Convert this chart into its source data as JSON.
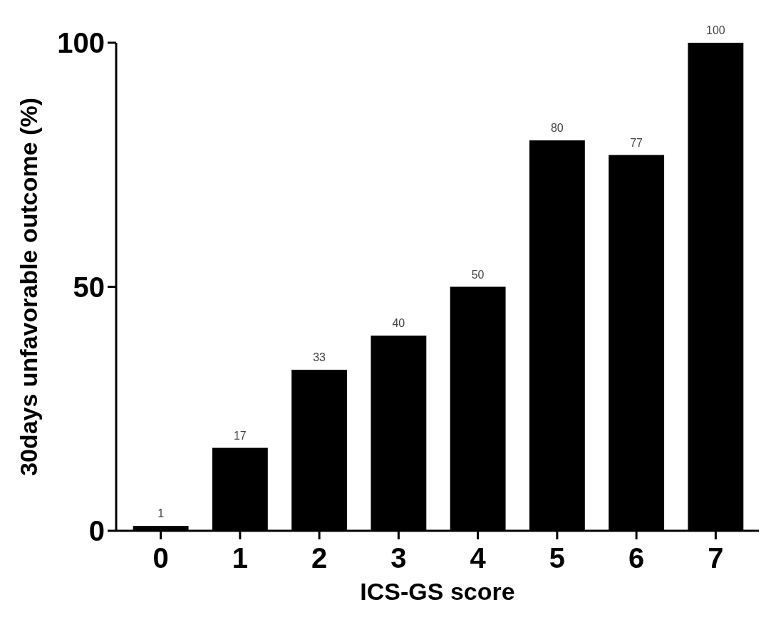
{
  "chart_data": {
    "type": "bar",
    "xlabel": "ICS-GS score",
    "ylabel": "30days unfavorable outcome (%)",
    "categories": [
      "0",
      "1",
      "2",
      "3",
      "4",
      "5",
      "6",
      "7"
    ],
    "values": [
      1,
      17,
      33,
      40,
      50,
      80,
      77,
      100
    ],
    "color": "#000000",
    "ylim": [
      0,
      100
    ],
    "yticks": [
      0,
      50,
      100
    ],
    "data_labels": true,
    "grid": false
  }
}
